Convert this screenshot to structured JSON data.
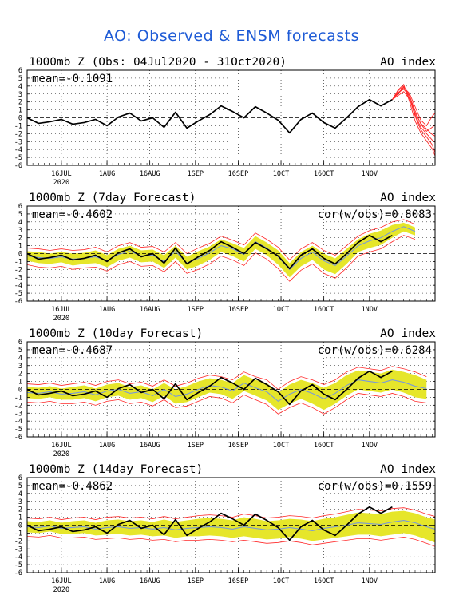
{
  "title": "AO: Observed & ENSM forecasts",
  "colors": {
    "title": "#1e5bd6",
    "observed": "#000000",
    "forecast": "#ff2a2a",
    "spread": "#e6e62a",
    "ensemble_mean": "#7a9ad8",
    "grid": "#000000"
  },
  "chart_data": [
    {
      "type": "line",
      "panel_title": "1000mb Z (Obs: 04Jul2020 - 31Oct2020)",
      "index_label": "AO index",
      "mean_label": "mean=-0.1091",
      "cor_label": "",
      "ylim": [
        -6,
        6
      ],
      "yticks": [
        6,
        5,
        4,
        3,
        2,
        1,
        0,
        -1,
        -2,
        -3,
        -4,
        -5,
        -6
      ],
      "xticks": [
        "16JUL",
        "1AUG",
        "16AUG",
        "1SEP",
        "16SEP",
        "1OCT",
        "16OCT",
        "1NOV"
      ],
      "xtick_days": [
        12,
        28,
        43,
        59,
        74,
        89,
        104,
        120
      ],
      "year_label": "2020",
      "xlim_days": [
        0,
        143
      ],
      "observed": {
        "days": [
          0,
          4,
          8,
          12,
          16,
          20,
          24,
          28,
          32,
          36,
          40,
          44,
          48,
          52,
          56,
          60,
          64,
          68,
          72,
          76,
          80,
          84,
          88,
          92,
          96,
          100,
          104,
          108,
          112,
          116,
          120,
          124,
          128
        ],
        "values": [
          0,
          -0.7,
          -0.5,
          -0.2,
          -0.8,
          -0.6,
          -0.2,
          -1.0,
          0.1,
          0.6,
          -0.4,
          0,
          -1.2,
          0.7,
          -1.3,
          -0.4,
          0.4,
          1.5,
          0.8,
          0,
          1.4,
          0.6,
          -0.3,
          -1.9,
          -0.2,
          0.6,
          -0.6,
          -1.3,
          0,
          1.4,
          2.3,
          1.5,
          2.3
        ]
      },
      "forecast_members": [
        {
          "days": [
            128,
            130,
            132,
            134,
            136,
            138,
            140,
            142,
            143
          ],
          "values": [
            2.3,
            3.4,
            4.0,
            2.5,
            0.2,
            -1.5,
            -2.4,
            -3.4,
            -4.4
          ]
        },
        {
          "days": [
            128,
            130,
            132,
            134,
            136,
            138,
            140,
            142,
            143
          ],
          "values": [
            2.3,
            3.2,
            3.6,
            2.8,
            0.9,
            -0.8,
            -1.7,
            -1.2,
            -0.9
          ]
        },
        {
          "days": [
            128,
            130,
            132,
            134,
            136,
            138,
            140,
            142,
            143
          ],
          "values": [
            2.3,
            3.0,
            3.8,
            3.1,
            1.4,
            -0.3,
            -1.0,
            0.2,
            0.6
          ]
        },
        {
          "days": [
            128,
            130,
            132,
            134,
            136,
            138,
            140,
            142,
            143
          ],
          "values": [
            2.3,
            3.5,
            4.2,
            2.1,
            -0.4,
            -1.9,
            -2.9,
            -3.9,
            -4.8
          ]
        },
        {
          "days": [
            128,
            130,
            132,
            134,
            136,
            138,
            140,
            142,
            143
          ],
          "values": [
            2.3,
            2.8,
            3.3,
            2.4,
            0.6,
            -0.7,
            -1.4,
            -2.1,
            -2.3
          ]
        },
        {
          "days": [
            128,
            130,
            132,
            134,
            136,
            138,
            140,
            142,
            143
          ],
          "values": [
            2.3,
            3.1,
            3.9,
            2.9,
            0.4,
            -1.2,
            -2.0,
            -2.8,
            -3.1
          ]
        }
      ],
      "forecast_mean": {
        "days": [],
        "values": []
      },
      "spread": {
        "days": [],
        "upper": [],
        "lower": []
      }
    },
    {
      "type": "line",
      "panel_title": "1000mb Z (7day Forecast)",
      "index_label": "AO index",
      "mean_label": "mean=-0.4602",
      "cor_label": "cor(w/obs)=0.8083",
      "ylim": [
        -6,
        6
      ],
      "yticks": [
        6,
        5,
        4,
        3,
        2,
        1,
        0,
        -1,
        -2,
        -3,
        -4,
        -5,
        -6
      ],
      "xticks": [
        "16JUL",
        "1AUG",
        "16AUG",
        "1SEP",
        "16SEP",
        "1OCT",
        "16OCT",
        "1NOV"
      ],
      "xtick_days": [
        12,
        28,
        43,
        59,
        74,
        89,
        104,
        120
      ],
      "year_label": "2020",
      "xlim_days": [
        0,
        143
      ],
      "observed": {
        "days": [
          0,
          4,
          8,
          12,
          16,
          20,
          24,
          28,
          32,
          36,
          40,
          44,
          48,
          52,
          56,
          60,
          64,
          68,
          72,
          76,
          80,
          84,
          88,
          92,
          96,
          100,
          104,
          108,
          112,
          116,
          120,
          124,
          128
        ],
        "values": [
          0,
          -0.7,
          -0.5,
          -0.2,
          -0.8,
          -0.6,
          -0.2,
          -1.0,
          0.1,
          0.6,
          -0.4,
          0,
          -1.2,
          0.7,
          -1.3,
          -0.4,
          0.4,
          1.5,
          0.8,
          0,
          1.4,
          0.6,
          -0.3,
          -1.9,
          -0.2,
          0.6,
          -0.6,
          -1.3,
          0,
          1.4,
          2.3,
          1.5,
          2.3
        ]
      },
      "forecast_members": [],
      "forecast_mean": {
        "days": [
          0,
          4,
          8,
          12,
          16,
          20,
          24,
          28,
          32,
          36,
          40,
          44,
          48,
          52,
          56,
          60,
          64,
          68,
          72,
          76,
          80,
          84,
          88,
          92,
          96,
          100,
          104,
          108,
          112,
          116,
          120,
          124,
          128,
          132,
          136
        ],
        "values": [
          -0.3,
          -0.5,
          -0.6,
          -0.4,
          -0.7,
          -0.6,
          -0.4,
          -0.9,
          -0.1,
          0.3,
          -0.3,
          -0.2,
          -1.0,
          0.3,
          -1.2,
          -0.6,
          0.1,
          1.0,
          0.6,
          -0.1,
          1.5,
          0.7,
          -0.4,
          -2.0,
          -0.6,
          0.2,
          -0.9,
          -1.5,
          -0.3,
          1.0,
          1.6,
          2.0,
          2.8,
          3.4,
          2.8
        ]
      },
      "spread": {
        "days": [
          0,
          4,
          8,
          12,
          16,
          20,
          24,
          28,
          32,
          36,
          40,
          44,
          48,
          52,
          56,
          60,
          64,
          68,
          72,
          76,
          80,
          84,
          88,
          92,
          96,
          100,
          104,
          108,
          112,
          116,
          120,
          124,
          128,
          132,
          136
        ],
        "upper": [
          0.3,
          0.2,
          0,
          0.2,
          0,
          0.1,
          0.4,
          -0.2,
          0.6,
          1.0,
          0.4,
          0.5,
          -0.2,
          1.0,
          -0.4,
          0.3,
          0.9,
          1.8,
          1.3,
          0.7,
          2.2,
          1.4,
          0.4,
          -1.2,
          0.2,
          1.0,
          0,
          -0.6,
          0.6,
          1.8,
          2.5,
          2.9,
          3.6,
          3.9,
          3.3
        ],
        "lower": [
          -0.9,
          -1.2,
          -1.3,
          -1.1,
          -1.5,
          -1.3,
          -1.2,
          -1.7,
          -0.9,
          -0.5,
          -1.1,
          -1.0,
          -1.8,
          -0.5,
          -2.0,
          -1.5,
          -0.8,
          0.2,
          -0.3,
          -1.0,
          0.6,
          -0.2,
          -1.4,
          -3.0,
          -1.6,
          -0.8,
          -2.0,
          -2.6,
          -1.3,
          0.2,
          0.7,
          1.1,
          2.0,
          2.8,
          2.3
        ]
      }
    },
    {
      "type": "line",
      "panel_title": "1000mb Z (10day Forecast)",
      "index_label": "AO index",
      "mean_label": "mean=-0.4687",
      "cor_label": "cor(w/obs)=0.6284",
      "ylim": [
        -6,
        6
      ],
      "yticks": [
        6,
        5,
        4,
        3,
        2,
        1,
        0,
        -1,
        -2,
        -3,
        -4,
        -5,
        -6
      ],
      "xticks": [
        "16JUL",
        "1AUG",
        "16AUG",
        "1SEP",
        "16SEP",
        "1OCT",
        "16OCT",
        "1NOV"
      ],
      "xtick_days": [
        12,
        28,
        43,
        59,
        74,
        89,
        104,
        120
      ],
      "year_label": "2020",
      "xlim_days": [
        0,
        143
      ],
      "observed": {
        "days": [
          0,
          4,
          8,
          12,
          16,
          20,
          24,
          28,
          32,
          36,
          40,
          44,
          48,
          52,
          56,
          60,
          64,
          68,
          72,
          76,
          80,
          84,
          88,
          92,
          96,
          100,
          104,
          108,
          112,
          116,
          120,
          124,
          128
        ],
        "values": [
          0,
          -0.7,
          -0.5,
          -0.2,
          -0.8,
          -0.6,
          -0.2,
          -1.0,
          0.1,
          0.6,
          -0.4,
          0,
          -1.2,
          0.7,
          -1.3,
          -0.4,
          0.4,
          1.5,
          0.8,
          0,
          1.4,
          0.6,
          -0.3,
          -1.9,
          -0.2,
          0.6,
          -0.6,
          -1.3,
          0,
          1.4,
          2.3,
          1.5,
          2.3
        ]
      },
      "forecast_members": [],
      "forecast_mean": {
        "days": [
          0,
          4,
          8,
          12,
          16,
          20,
          24,
          28,
          32,
          36,
          40,
          44,
          48,
          52,
          56,
          60,
          64,
          68,
          72,
          76,
          80,
          84,
          88,
          92,
          96,
          100,
          104,
          108,
          112,
          116,
          120,
          124,
          128,
          132,
          136,
          140
        ],
        "values": [
          -0.4,
          -0.5,
          -0.3,
          -0.6,
          -0.5,
          -0.3,
          -0.7,
          -0.2,
          0,
          -0.5,
          -0.3,
          -0.8,
          0,
          -0.9,
          -0.6,
          0,
          0.5,
          0.3,
          -0.2,
          0.8,
          0.2,
          -0.3,
          -1.5,
          -0.6,
          0,
          -0.5,
          -1.2,
          -0.5,
          0.5,
          1.2,
          1.0,
          0.8,
          1.2,
          0.9,
          0.4,
          0.1
        ]
      },
      "spread": {
        "days": [
          0,
          4,
          8,
          12,
          16,
          20,
          24,
          28,
          32,
          36,
          40,
          44,
          48,
          52,
          56,
          60,
          64,
          68,
          72,
          76,
          80,
          84,
          88,
          92,
          96,
          100,
          104,
          108,
          112,
          116,
          120,
          124,
          128,
          132,
          136,
          140
        ],
        "upper": [
          0.3,
          0.2,
          0.4,
          0.1,
          0.3,
          0.5,
          0.1,
          0.6,
          0.8,
          0.3,
          0.5,
          0,
          0.8,
          0,
          0.4,
          1.0,
          1.4,
          1.2,
          0.8,
          1.8,
          1.2,
          0.8,
          -0.4,
          0.6,
          1.2,
          0.8,
          0.2,
          0.8,
          1.8,
          2.4,
          2.2,
          2.0,
          2.5,
          2.2,
          1.8,
          1.2
        ],
        "lower": [
          -1.1,
          -1.2,
          -1.0,
          -1.3,
          -1.3,
          -1.1,
          -1.5,
          -1.0,
          -0.8,
          -1.3,
          -1.1,
          -1.6,
          -0.8,
          -1.8,
          -1.6,
          -1.0,
          -0.4,
          -0.6,
          -1.2,
          -0.2,
          -0.8,
          -1.4,
          -2.6,
          -1.8,
          -1.2,
          -1.8,
          -2.6,
          -1.8,
          -0.8,
          0,
          -0.2,
          -0.4,
          0,
          -0.4,
          -1.0,
          -1.2
        ]
      }
    },
    {
      "type": "line",
      "panel_title": "1000mb Z (14day Forecast)",
      "index_label": "AO index",
      "mean_label": "mean=-0.4862",
      "cor_label": "cor(w/obs)=0.1559",
      "ylim": [
        -6,
        6
      ],
      "yticks": [
        6,
        5,
        4,
        3,
        2,
        1,
        0,
        -1,
        -2,
        -3,
        -4,
        -5,
        -6
      ],
      "xticks": [
        "16JUL",
        "1AUG",
        "16AUG",
        "1SEP",
        "16SEP",
        "1OCT",
        "16OCT",
        "1NOV"
      ],
      "xtick_days": [
        12,
        28,
        43,
        59,
        74,
        89,
        104,
        120
      ],
      "year_label": "2020",
      "xlim_days": [
        0,
        143
      ],
      "observed": {
        "days": [
          0,
          4,
          8,
          12,
          16,
          20,
          24,
          28,
          32,
          36,
          40,
          44,
          48,
          52,
          56,
          60,
          64,
          68,
          72,
          76,
          80,
          84,
          88,
          92,
          96,
          100,
          104,
          108,
          112,
          116,
          120,
          124,
          128
        ],
        "values": [
          0,
          -0.7,
          -0.5,
          -0.2,
          -0.8,
          -0.6,
          -0.2,
          -1.0,
          0.1,
          0.6,
          -0.4,
          0,
          -1.2,
          0.7,
          -1.3,
          -0.4,
          0.4,
          1.5,
          0.8,
          0,
          1.4,
          0.6,
          -0.3,
          -1.9,
          -0.2,
          0.6,
          -0.6,
          -1.3,
          0,
          1.4,
          2.3,
          1.5,
          2.3
        ]
      },
      "forecast_members": [],
      "forecast_mean": {
        "days": [
          0,
          4,
          8,
          12,
          16,
          20,
          24,
          28,
          32,
          36,
          40,
          44,
          48,
          52,
          56,
          60,
          64,
          68,
          72,
          76,
          80,
          84,
          88,
          92,
          96,
          100,
          104,
          108,
          112,
          116,
          120,
          124,
          128,
          132,
          136,
          140,
          143
        ],
        "values": [
          -0.2,
          -0.3,
          -0.1,
          -0.4,
          -0.3,
          -0.2,
          -0.5,
          -0.3,
          -0.2,
          -0.4,
          -0.3,
          -0.5,
          -0.3,
          -0.6,
          -0.4,
          -0.3,
          -0.2,
          -0.3,
          -0.5,
          -0.2,
          -0.4,
          -0.6,
          -0.5,
          -0.3,
          -0.5,
          -0.7,
          -0.4,
          -0.2,
          0,
          0.3,
          0.2,
          0.1,
          0.4,
          0.6,
          0.3,
          -0.2,
          -0.5
        ]
      },
      "spread": {
        "days": [
          0,
          4,
          8,
          12,
          16,
          20,
          24,
          28,
          32,
          36,
          40,
          44,
          48,
          52,
          56,
          60,
          64,
          68,
          72,
          76,
          80,
          84,
          88,
          92,
          96,
          100,
          104,
          108,
          112,
          116,
          120,
          124,
          128,
          132,
          136,
          140,
          143
        ],
        "upper": [
          0.5,
          0.4,
          0.6,
          0.3,
          0.5,
          0.6,
          0.3,
          0.6,
          0.7,
          0.5,
          0.6,
          0.4,
          0.7,
          0.4,
          0.6,
          0.8,
          0.9,
          0.8,
          0.6,
          1.0,
          0.8,
          0.5,
          0.6,
          0.8,
          0.7,
          0.5,
          0.8,
          1.0,
          1.3,
          1.6,
          1.5,
          1.4,
          1.7,
          1.8,
          1.5,
          1.0,
          0.7
        ],
        "lower": [
          -0.9,
          -1.0,
          -0.8,
          -1.1,
          -1.1,
          -1.0,
          -1.3,
          -1.2,
          -1.1,
          -1.3,
          -1.2,
          -1.4,
          -1.3,
          -1.6,
          -1.4,
          -1.4,
          -1.3,
          -1.4,
          -1.6,
          -1.4,
          -1.6,
          -1.8,
          -1.7,
          -1.5,
          -1.7,
          -2.0,
          -1.8,
          -1.6,
          -1.4,
          -1.2,
          -1.2,
          -1.4,
          -1.2,
          -1.0,
          -1.3,
          -1.8,
          -2.2
        ]
      }
    }
  ]
}
